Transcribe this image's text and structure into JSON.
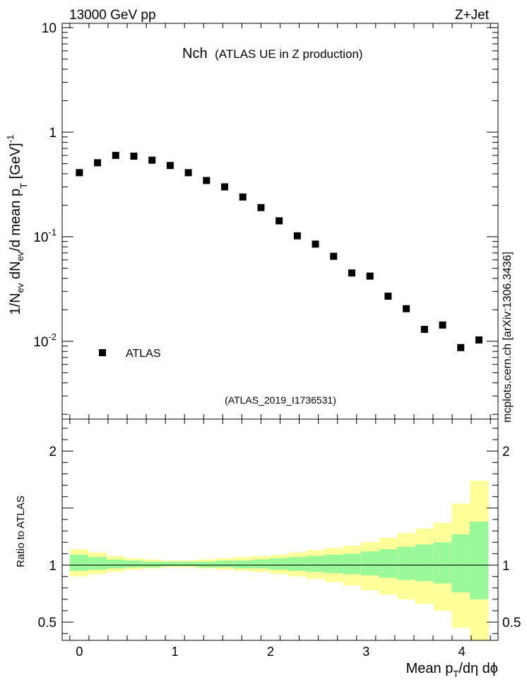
{
  "header": {
    "left": "13000 GeV pp",
    "right": "Z+Jet"
  },
  "chart_data": {
    "type": "scatter",
    "title": "Nch",
    "title_sub": "(ATLAS UE in Z production)",
    "analysis_id": "(ATLAS_2019_I1736531)",
    "side_label": "mcplots.cern.ch [arXiv:1306.3436]",
    "ylabel": "1/N_ev dN_ev/d mean p_T [GeV]^-1",
    "ylabel_parts": {
      "a": "1/N",
      "b": "ev",
      "c": " dN",
      "d": "ev",
      "e": "/d mean p",
      "f": "T",
      "g": " [GeV]",
      "h": "-1"
    },
    "xlabel": "Mean p_T/dη dϕ",
    "xlabel_parts": {
      "a": "Mean p",
      "b": "T",
      "c": "/dη dϕ"
    },
    "xlim": [
      -0.18,
      4.38
    ],
    "ylim_log": [
      0.0018,
      11
    ],
    "y_scale": "log",
    "x_ticks": [
      "0",
      "1",
      "2",
      "3",
      "4"
    ],
    "y_ticks": [
      {
        "base": "10",
        "exp": "-2",
        "value": 0.01
      },
      {
        "base": "10",
        "exp": "-1",
        "value": 0.1
      },
      {
        "base": "1",
        "exp": "",
        "value": 1
      },
      {
        "base": "10",
        "exp": "",
        "value": 10
      }
    ],
    "legend": {
      "label": "ATLAS",
      "placement": "lower-left"
    },
    "series": [
      {
        "name": "ATLAS",
        "x": [
          0.0,
          0.19,
          0.38,
          0.57,
          0.76,
          0.95,
          1.14,
          1.33,
          1.52,
          1.71,
          1.9,
          2.09,
          2.28,
          2.47,
          2.66,
          2.85,
          3.04,
          3.23,
          3.42,
          3.61,
          3.8,
          3.99,
          4.18
        ],
        "y": [
          0.41,
          0.51,
          0.6,
          0.59,
          0.54,
          0.48,
          0.41,
          0.345,
          0.3,
          0.24,
          0.19,
          0.142,
          0.102,
          0.085,
          0.065,
          0.045,
          0.042,
          0.027,
          0.0205,
          0.013,
          0.0143,
          0.0087,
          0.0103
        ]
      }
    ],
    "ratio": {
      "ylabel": "Ratio to ATLAS",
      "ylim": [
        0.34,
        2.28
      ],
      "y_ticks": [
        "0.5",
        "1",
        "2"
      ],
      "reference": 1.0,
      "bin_edges": [
        -0.1,
        0.095,
        0.285,
        0.475,
        0.665,
        0.855,
        1.045,
        1.235,
        1.425,
        1.615,
        1.805,
        1.995,
        2.185,
        2.375,
        2.565,
        2.755,
        2.945,
        3.135,
        3.325,
        3.515,
        3.705,
        3.895,
        4.085,
        4.28
      ],
      "band_inner": {
        "upper": [
          1.09,
          1.07,
          1.05,
          1.04,
          1.03,
          1.03,
          1.03,
          1.03,
          1.04,
          1.04,
          1.05,
          1.06,
          1.07,
          1.08,
          1.09,
          1.1,
          1.12,
          1.14,
          1.16,
          1.18,
          1.2,
          1.27,
          1.38
        ],
        "lower": [
          0.95,
          0.96,
          0.97,
          0.98,
          0.98,
          0.99,
          0.99,
          0.98,
          0.98,
          0.97,
          0.97,
          0.96,
          0.95,
          0.94,
          0.93,
          0.92,
          0.91,
          0.89,
          0.87,
          0.86,
          0.84,
          0.76,
          0.7
        ]
      },
      "band_outer": {
        "upper": [
          1.14,
          1.11,
          1.08,
          1.06,
          1.05,
          1.04,
          1.04,
          1.05,
          1.06,
          1.07,
          1.08,
          1.09,
          1.11,
          1.13,
          1.15,
          1.17,
          1.2,
          1.24,
          1.28,
          1.32,
          1.37,
          1.54,
          1.74
        ],
        "lower": [
          0.9,
          0.92,
          0.94,
          0.96,
          0.97,
          0.98,
          0.98,
          0.97,
          0.96,
          0.95,
          0.94,
          0.92,
          0.9,
          0.88,
          0.85,
          0.82,
          0.78,
          0.74,
          0.7,
          0.66,
          0.6,
          0.45,
          0.34
        ]
      },
      "colors": {
        "inner": "#99f999",
        "outer": "#ffff99",
        "line": "#000000"
      }
    },
    "colors": {
      "marker": "#000000",
      "axis": "#000000",
      "id_label": "#999999",
      "side_label": "#777777"
    }
  }
}
